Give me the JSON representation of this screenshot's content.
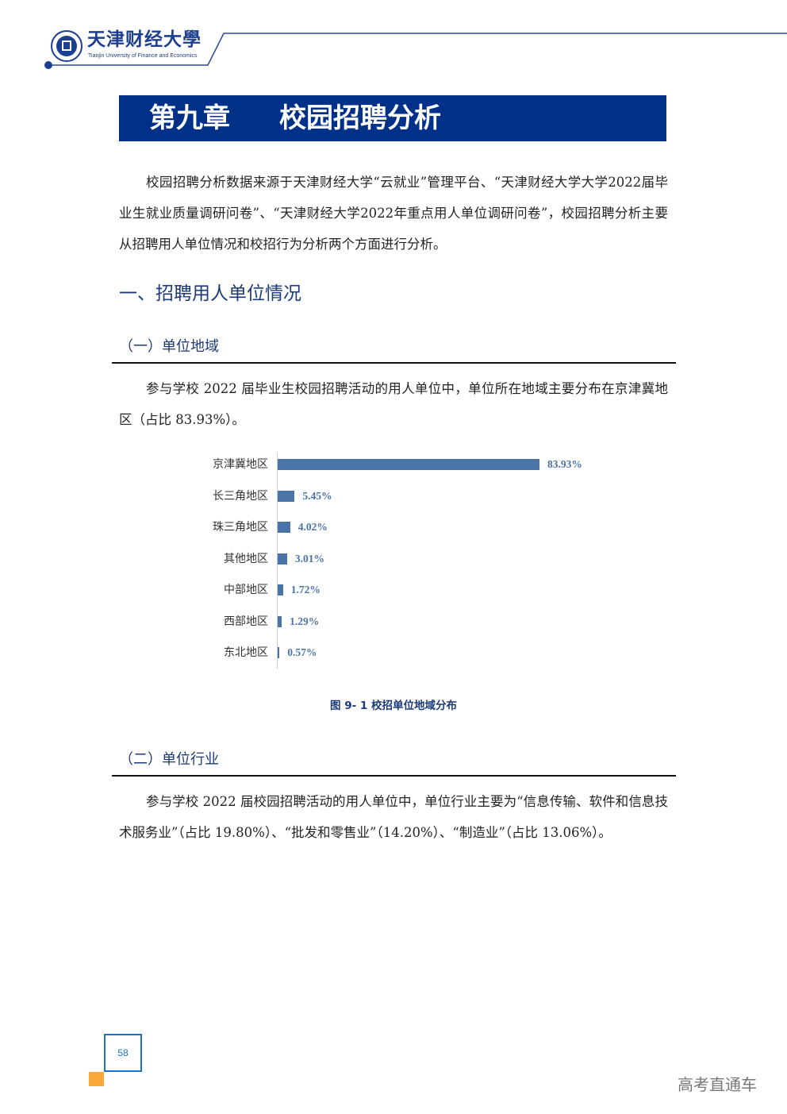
{
  "header": {
    "logo_cn": "天津财经大學",
    "logo_en": "Tianjin University of Finance and Economics",
    "accent_color": "#1d3f8f"
  },
  "banner": {
    "chapter": "第九章",
    "title": "校园招聘分析",
    "color": "#003087"
  },
  "intro": "校园招聘分析数据来源于天津财经大学“云就业”管理平台、“天津财经大学大学2022届毕业生就业质量调研问卷”、“天津财经大学2022年重点用人单位调研问卷”，校园招聘分析主要从招聘用人单位情况和校招行为分析两个方面进行分析。",
  "section1": {
    "title": "一、招聘用人单位情况",
    "sub1": {
      "title": "（一）单位地域",
      "text": "参与学校 2022 届毕业生校园招聘活动的用人单位中，单位所在地域主要分布在京津冀地区（占比 83.93%）。"
    },
    "sub2": {
      "title": "（二）单位行业",
      "text": "参与学校 2022 届校园招聘活动的用人单位中，单位行业主要为“信息传输、软件和信息技术服务业”（占比 19.80%）、“批发和零售业”（14.20%）、“制造业”（占比 13.06%）。"
    }
  },
  "chart_data": {
    "type": "bar",
    "orientation": "horizontal",
    "title": "图 9- 1 校招单位地域分布",
    "categories": [
      "京津冀地区",
      "长三角地区",
      "珠三角地区",
      "其他地区",
      "中部地区",
      "西部地区",
      "东北地区"
    ],
    "values": [
      83.93,
      5.45,
      4.02,
      3.01,
      1.72,
      1.29,
      0.57
    ],
    "labels": [
      "83.93%",
      "5.45%",
      "4.02%",
      "3.01%",
      "1.72%",
      "1.29%",
      "0.57%"
    ],
    "unit": "%",
    "grid": false,
    "bar_color": "#4a74a6"
  },
  "footer": {
    "page_number": "58",
    "watermark": "高考直通车"
  }
}
